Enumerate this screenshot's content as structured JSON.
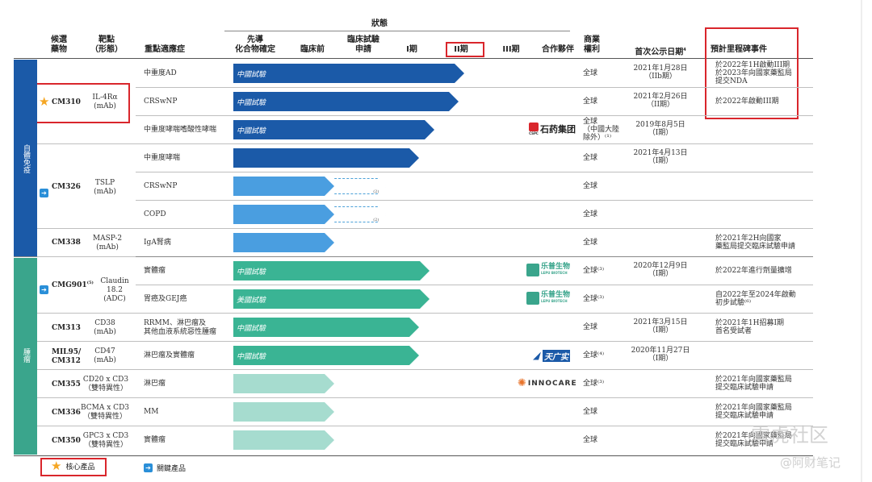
{
  "header": {
    "status": "狀態",
    "candidate": "候選\n藥物",
    "target": "靶點\n（形態）",
    "indication": "重點適應症",
    "lead": "先導\n化合物確定",
    "preclinical": "臨床前",
    "ind": "臨床試驗\n申請",
    "phase1": "I期",
    "phase2": "II期",
    "phase3": "III期",
    "partner": "合作夥伴",
    "rights": "商業\n權利",
    "first_disclosure": "首次公示日期",
    "first_disclosure_sup": "4",
    "milestones": "預計里程碑事件"
  },
  "bands": {
    "autoimmune": "自體免疫",
    "oncology": "腫瘤"
  },
  "rows": [
    {
      "candidate": "CM310",
      "target": "IL-4Rα\n(mAb)",
      "indication": "中重度AD",
      "bar_label": "中國試驗",
      "rights": "全球",
      "date": "2021年1月28日\n（IIb期）",
      "milestone": "於2022年1H啟動III期\n於2023年向國家藥監局\n提交NDA"
    },
    {
      "candidate": "",
      "target": "",
      "indication": "CRSwNP",
      "bar_label": "中國試驗",
      "rights": "全球",
      "date": "2021年2月26日\n（II期）",
      "milestone": "於2022年啟動III期"
    },
    {
      "candidate": "",
      "target": "",
      "indication": "中重度哮喘嗜酸性哮喘",
      "bar_label": "中國試驗",
      "rights": "全球\n（中國大陸\n除外）⁽¹⁾",
      "date": "2019年8月5日\n（I期）",
      "milestone": ""
    },
    {
      "candidate": "",
      "target": "",
      "indication": "中重度哮喘",
      "bar_label": "",
      "rights": "全球",
      "date": "2021年4月13日\n（I期）",
      "milestone": ""
    },
    {
      "candidate": "CM326",
      "target": "TSLP\n(mAb)",
      "indication": "CRSwNP",
      "bar_label": "",
      "rights": "全球",
      "date": "",
      "milestone": "",
      "note": "(2)"
    },
    {
      "candidate": "",
      "target": "",
      "indication": "COPD",
      "bar_label": "",
      "rights": "全球",
      "date": "",
      "milestone": "",
      "note": "(2)"
    },
    {
      "candidate": "CM338",
      "target": "MASP-2\n(mAb)",
      "indication": "IgA腎病",
      "bar_label": "",
      "rights": "全球",
      "date": "",
      "milestone": "於2021年2H向國家\n藥監局提交臨床試驗申請"
    },
    {
      "candidate": "CMG901",
      "candidate_sup": "(5)",
      "target": "Claudin 18.2\n(ADC)",
      "indication": "實體瘤",
      "bar_label": "中國試驗",
      "rights": "全球⁽³⁾",
      "date": "2020年12月9日\n（I期）",
      "milestone": "於2022年進行劑量擴增"
    },
    {
      "candidate": "",
      "target": "",
      "indication": "胃癌及GEJ癌",
      "bar_label": "美國試驗",
      "rights": "全球⁽³⁾",
      "date": "",
      "milestone": "自2022年至2024年啟動\n初步試驗⁽⁶⁾"
    },
    {
      "candidate": "CM313",
      "target": "CD38\n(mAb)",
      "indication": "RRMM、淋巴瘤及\n其他血液系統惡性腫瘤",
      "bar_label": "中國試驗",
      "rights": "全球",
      "date": "2021年3月15日\n（I期）",
      "milestone": "於2021年1H招募I期\n首名受試者"
    },
    {
      "candidate": "MIL95/\nCM312",
      "target": "CD47\n(mAb)",
      "indication": "淋巴瘤及實體瘤",
      "bar_label": "中國試驗",
      "rights": "全球⁽⁴⁾",
      "date": "2020年11月27日\n（I期）",
      "milestone": ""
    },
    {
      "candidate": "CM355",
      "target": "CD20 x CD3\n（雙特異性）",
      "indication": "淋巴瘤",
      "bar_label": "",
      "rights": "全球⁽³⁾",
      "date": "",
      "milestone": "於2021年向國家藥監局\n提交臨床試驗申請"
    },
    {
      "candidate": "CM336",
      "target": "BCMA x CD3\n（雙特異性）",
      "indication": "MM",
      "bar_label": "",
      "rights": "全球",
      "date": "",
      "milestone": "於2021年向國家藥監局\n提交臨床試驗申請"
    },
    {
      "candidate": "CM350",
      "target": "GPC3 x CD3\n（雙特異性）",
      "indication": "實體瘤",
      "bar_label": "",
      "rights": "全球",
      "date": "",
      "milestone": "於2021年向國家藥監局\n提交臨床試驗申請"
    }
  ],
  "partners": {
    "cspc": "石药集团",
    "cspc_small": "CSPC",
    "lepu": "乐普生物",
    "lepu_small": "LEPU BIOTECH",
    "tianguang": "天广实",
    "innocare": "INNOCARE"
  },
  "legend": {
    "core": "核心產品",
    "key": "關鍵產品"
  },
  "watermark": {
    "community": "雪虎社区",
    "note": "@阿财笔记"
  },
  "progress": {
    "_comment_units": "stage index from 0 (lead) — 1 preclinical, 2 IND, 3 Phase I, 4 Phase II, 5 Phase III",
    "CM310_AD": 4.3,
    "CM310_CRSwNP": 4.2,
    "CM310_asthma": 3.7,
    "CM326_asthma": 3.4,
    "CM326_CRSwNP": 1.9,
    "CM326_COPD": 1.9,
    "CM338": 1.9,
    "CMG901_solid": 3.6,
    "CMG901_GC": 3.6,
    "CM313": 3.4,
    "MIL95": 3.4,
    "CM355": 1.9,
    "CM336": 1.9,
    "CM350": 1.9
  },
  "colors": {
    "autoimmune_band": "#1b5aa8",
    "oncology_band": "#3aa58c",
    "bar_dark_blue": "#1b5aa8",
    "bar_light_blue": "#4a9ee0",
    "bar_green": "#3ab494",
    "bar_light_green": "#a6dccf",
    "highlight": "#d9262c"
  }
}
